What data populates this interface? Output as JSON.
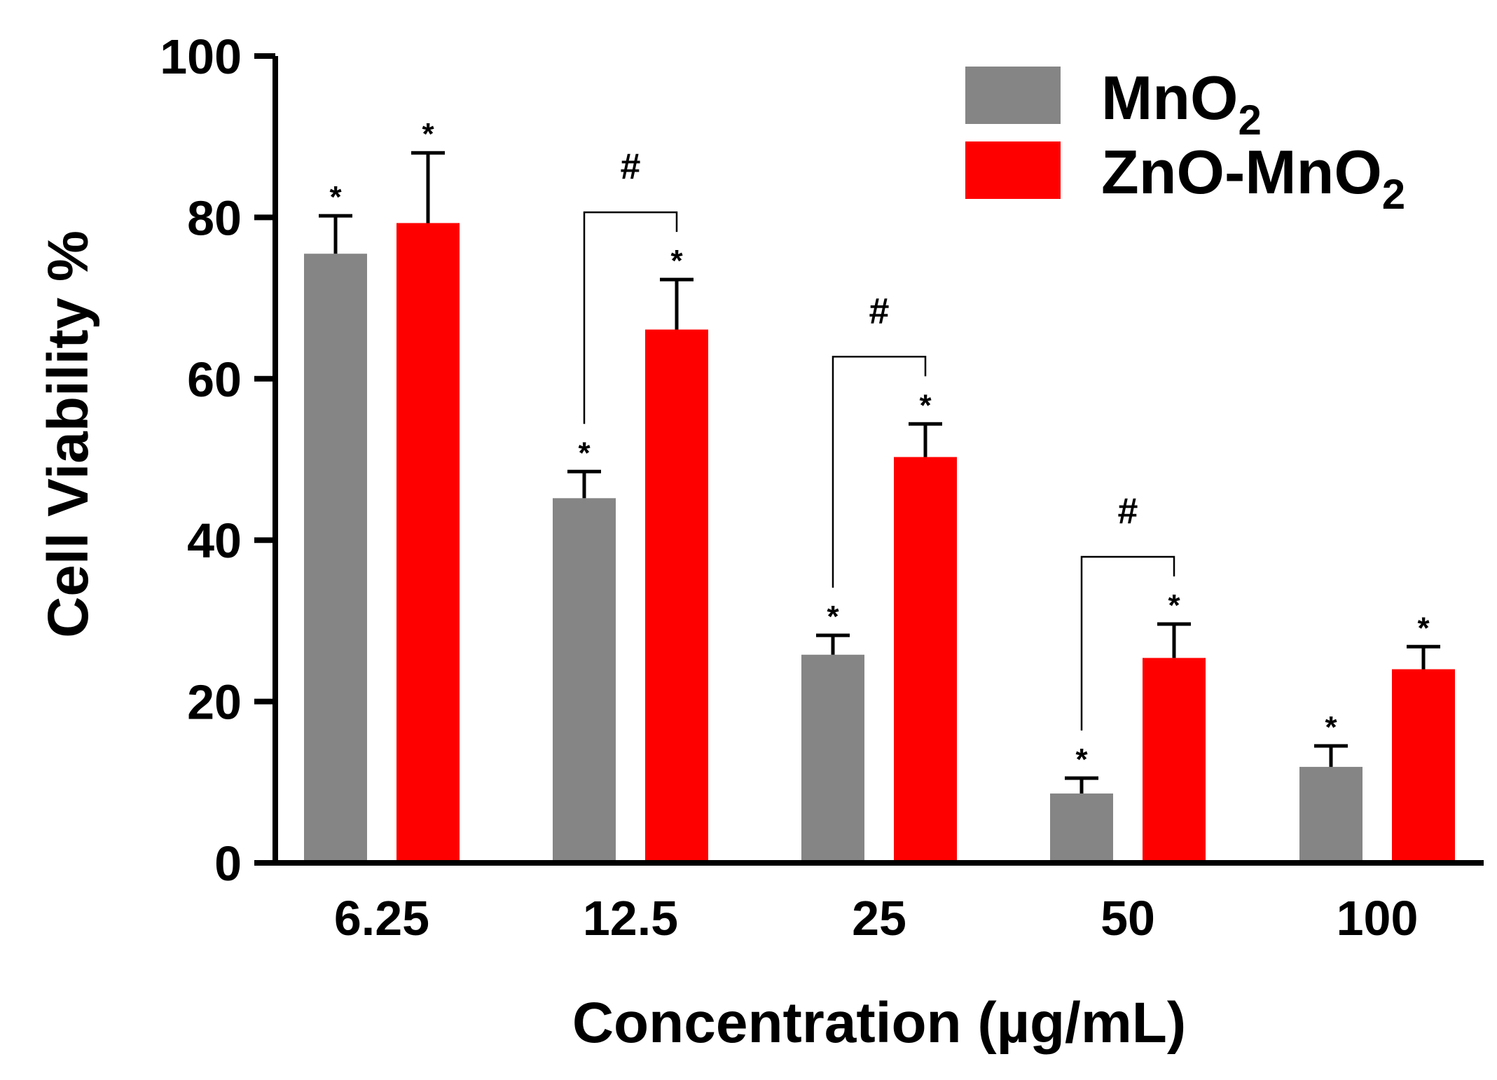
{
  "chart_data": {
    "type": "bar",
    "categories": [
      "6.25",
      "12.5",
      "25",
      "50",
      "100"
    ],
    "series": [
      {
        "name": "MnO",
        "name_subscript": "2",
        "color": "#858585",
        "values": [
          75.5,
          45.2,
          25.8,
          8.6,
          11.9
        ],
        "errors": [
          4.7,
          3.3,
          2.4,
          1.9,
          2.6
        ]
      },
      {
        "name": "ZnO-MnO",
        "name_subscript": "2",
        "color": "#ff0000",
        "values": [
          79.3,
          66.1,
          50.3,
          25.4,
          24.0
        ],
        "errors": [
          8.7,
          6.2,
          4.1,
          4.2,
          2.8
        ]
      }
    ],
    "xlabel": "Concentration (µg/mL)",
    "ylabel": "Cell Viability %",
    "ylim": [
      0,
      100
    ],
    "yticks": [
      "0",
      "20",
      "40",
      "60",
      "80",
      "100"
    ],
    "legend_position": "top-right",
    "significance_marks": [
      {
        "series": 0,
        "category": 0,
        "symbol": "*"
      },
      {
        "series": 1,
        "category": 0,
        "symbol": "*"
      },
      {
        "series": 0,
        "category": 1,
        "symbol": "*"
      },
      {
        "series": 1,
        "category": 1,
        "symbol": "*"
      },
      {
        "series": 0,
        "category": 2,
        "symbol": "*"
      },
      {
        "series": 1,
        "category": 2,
        "symbol": "*"
      },
      {
        "series": 0,
        "category": 3,
        "symbol": "*"
      },
      {
        "series": 1,
        "category": 3,
        "symbol": "*"
      },
      {
        "series": 0,
        "category": 4,
        "symbol": "*"
      },
      {
        "series": 1,
        "category": 4,
        "symbol": "*"
      }
    ],
    "comparisons": [
      {
        "category": 1,
        "symbol": "#"
      },
      {
        "category": 2,
        "symbol": "#"
      },
      {
        "category": 3,
        "symbol": "#"
      }
    ]
  }
}
